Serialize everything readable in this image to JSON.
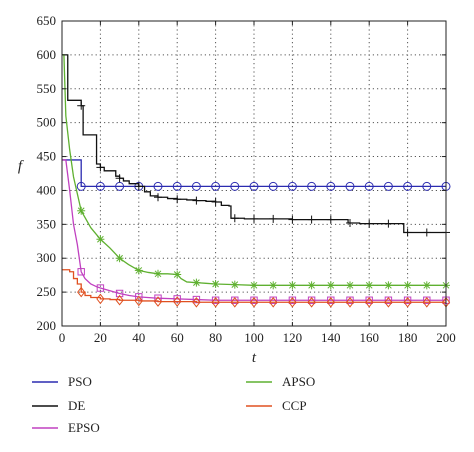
{
  "chart_data": {
    "type": "line",
    "xlabel": "t",
    "ylabel": "f",
    "xlim": [
      0,
      200
    ],
    "ylim": [
      200,
      650
    ],
    "xticks": [
      0,
      20,
      40,
      60,
      80,
      100,
      120,
      140,
      160,
      180,
      200
    ],
    "yticks": [
      200,
      250,
      300,
      350,
      400,
      450,
      500,
      550,
      600,
      650
    ],
    "grid": true,
    "grid_style": "dotted",
    "legend_position": "bottom",
    "series": [
      {
        "name": "PSO",
        "color": "#2b2bb0",
        "marker": "circle",
        "step": true,
        "x": [
          0,
          5,
          10,
          200
        ],
        "y": [
          445,
          445,
          406,
          406
        ],
        "marker_x": [
          10,
          20,
          30,
          40,
          50,
          60,
          70,
          80,
          90,
          100,
          110,
          120,
          130,
          140,
          150,
          160,
          170,
          180,
          190,
          200
        ]
      },
      {
        "name": "DE",
        "color": "#111111",
        "marker": "plus",
        "step": true,
        "x": [
          0,
          2,
          3,
          10,
          11,
          18,
          20,
          22,
          28,
          30,
          32,
          35,
          40,
          43,
          46,
          50,
          55,
          60,
          65,
          70,
          75,
          80,
          83,
          87,
          88,
          95,
          100,
          110,
          120,
          130,
          140,
          149,
          155,
          160,
          170,
          178,
          180,
          190,
          200
        ],
        "y": [
          600,
          600,
          533,
          525,
          482,
          439,
          434,
          429,
          421,
          418,
          414,
          410,
          406,
          398,
          392,
          390,
          388,
          387,
          386,
          385,
          384,
          383,
          378,
          377,
          359,
          358,
          358,
          358,
          357,
          357,
          357,
          352,
          351,
          351,
          351,
          338,
          338,
          338,
          338
        ],
        "marker_x": [
          10,
          20,
          30,
          40,
          50,
          60,
          70,
          80,
          90,
          100,
          110,
          120,
          130,
          140,
          150,
          160,
          170,
          180,
          190,
          200
        ]
      },
      {
        "name": "EPSO",
        "color": "#c040c0",
        "marker": "square",
        "step": false,
        "x": [
          0,
          2,
          4,
          6,
          8,
          10,
          12,
          15,
          18,
          20,
          25,
          30,
          35,
          40,
          50,
          60,
          70,
          80,
          100,
          120,
          140,
          160,
          180,
          200
        ],
        "y": [
          445,
          445,
          400,
          350,
          320,
          280,
          270,
          262,
          258,
          256,
          252,
          248,
          245,
          243,
          241,
          240,
          239,
          238,
          238,
          238,
          238,
          238,
          238,
          238
        ],
        "marker_x": [
          10,
          20,
          30,
          40,
          50,
          60,
          70,
          80,
          90,
          100,
          110,
          120,
          130,
          140,
          150,
          160,
          170,
          180,
          190,
          200
        ]
      },
      {
        "name": "APSO",
        "color": "#5fb030",
        "marker": "asterisk",
        "step": false,
        "x": [
          0,
          1,
          2,
          4,
          6,
          8,
          10,
          15,
          20,
          25,
          30,
          35,
          40,
          45,
          50,
          55,
          60,
          62,
          65,
          70,
          75,
          80,
          90,
          100,
          120,
          140,
          160,
          180,
          200
        ],
        "y": [
          600,
          600,
          510,
          460,
          420,
          395,
          370,
          345,
          328,
          315,
          300,
          290,
          282,
          279,
          277,
          277,
          276,
          270,
          265,
          264,
          263,
          262,
          261,
          260,
          260,
          260,
          260,
          260,
          260
        ],
        "marker_x": [
          10,
          20,
          30,
          40,
          50,
          60,
          70,
          80,
          90,
          100,
          110,
          120,
          130,
          140,
          150,
          160,
          170,
          180,
          190,
          200
        ]
      },
      {
        "name": "CCP",
        "color": "#e05020",
        "marker": "diamond",
        "step": true,
        "x": [
          0,
          2,
          4,
          6,
          8,
          10,
          12,
          15,
          20,
          25,
          30,
          40,
          50,
          60,
          65,
          70,
          80,
          100,
          120,
          140,
          160,
          180,
          200
        ],
        "y": [
          283,
          283,
          280,
          270,
          262,
          250,
          245,
          242,
          240,
          239,
          238,
          237,
          236,
          236,
          236,
          235,
          235,
          235,
          235,
          235,
          235,
          235,
          235
        ],
        "marker_x": [
          10,
          20,
          30,
          40,
          50,
          60,
          70,
          80,
          90,
          100,
          110,
          120,
          130,
          140,
          150,
          160,
          170,
          180,
          190,
          200
        ]
      }
    ]
  }
}
